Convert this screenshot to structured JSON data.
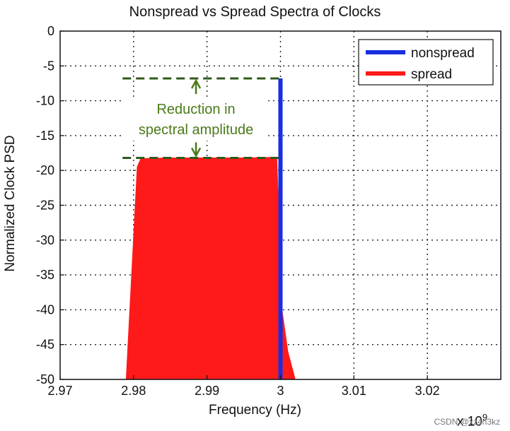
{
  "chart_data": {
    "type": "line",
    "title": "Nonspread vs Spread Spectra of Clocks",
    "xlabel": "Frequency (Hz)",
    "ylabel": "Normalized Clock PSD",
    "x_multiplier_base": "x 10",
    "x_multiplier_exp": "9",
    "xlim": [
      2.97,
      3.03
    ],
    "ylim": [
      -50,
      0
    ],
    "xticks": [
      2.97,
      2.98,
      2.99,
      3.0,
      3.01,
      3.02
    ],
    "xtick_labels": [
      "2.97",
      "2.98",
      "2.99",
      "3",
      "3.01",
      "3.02"
    ],
    "yticks": [
      0,
      -5,
      -10,
      -15,
      -20,
      -25,
      -30,
      -35,
      -40,
      -45,
      -50
    ],
    "ytick_labels": [
      "0",
      "-5",
      "-10",
      "-15",
      "-20",
      "-25",
      "-30",
      "-35",
      "-40",
      "-45",
      "-50"
    ],
    "grid": true,
    "legend_position": "top-right",
    "series": [
      {
        "name": "nonspread",
        "color": "#1a2ee0",
        "kind": "spike",
        "x": [
          3.0,
          3.0
        ],
        "y": [
          -50,
          -6.8
        ]
      },
      {
        "name": "spread",
        "color": "#ff1a1a",
        "kind": "band",
        "x": [
          2.979,
          2.9805,
          2.981,
          2.985,
          2.99,
          2.995,
          2.9995,
          3.0002,
          3.001,
          3.002
        ],
        "y": [
          -50,
          -19.5,
          -18.3,
          -18.2,
          -18.2,
          -18.2,
          -18.1,
          -40,
          -46,
          -50
        ]
      }
    ],
    "annotation": {
      "line1": "Reduction in",
      "line2": "spectral amplitude",
      "upper_level": -6.8,
      "lower_level": -18.2,
      "color": "#4a7a18"
    }
  },
  "watermark": "CSDN @xz4n3kz"
}
